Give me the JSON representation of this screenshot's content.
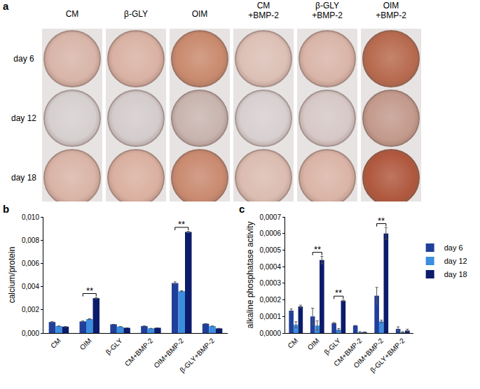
{
  "panel_a": {
    "label": "a",
    "columns": [
      [
        "CM"
      ],
      [
        "β-GLY"
      ],
      [
        "OIM"
      ],
      [
        "CM",
        "+BMP-2"
      ],
      [
        "β-GLY",
        "+BMP-2"
      ],
      [
        "OIM",
        "+BMP-2"
      ]
    ],
    "rows": [
      "day 6",
      "day 12",
      "day 18"
    ],
    "colors": [
      [
        "#d8b5a8",
        "#d9b2a4",
        "#c98a6e",
        "#dcc0b6",
        "#d9b5a8",
        "#b76a4e"
      ],
      [
        "#d6cfd0",
        "#d4cccc",
        "#c8b4ae",
        "#d8d0d0",
        "#d6c8c6",
        "#c39a8c"
      ],
      [
        "#d9b4a6",
        "#dab0a0",
        "#c98a70",
        "#dbbcb0",
        "#dab4a6",
        "#b0583e"
      ]
    ]
  },
  "chart_data": [
    {
      "panel": "b",
      "type": "bar",
      "y_title": "calcium/protein",
      "categories": [
        "CM",
        "OIM",
        "β-GLY",
        "CM+BMP-2",
        "OIM+BMP-2",
        "β-GLY+BMP-2"
      ],
      "series": [
        {
          "name": "day 6",
          "color": "#203f9a",
          "values": [
            0.00095,
            0.001,
            0.00075,
            0.0006,
            0.0043,
            0.0008
          ],
          "errors": [
            3e-05,
            4e-05,
            0,
            0,
            0.0001,
            0
          ]
        },
        {
          "name": "day 12",
          "color": "#3b8ee0",
          "values": [
            0.0006,
            0.0012,
            0.00055,
            0.0004,
            0.0036,
            0.0006
          ],
          "errors": [
            0,
            3e-05,
            0,
            0,
            5e-05,
            0
          ]
        },
        {
          "name": "day 18",
          "color": "#0b1c6b",
          "values": [
            0.00055,
            0.003,
            0.00045,
            0.00045,
            0.0087,
            0.0004
          ],
          "errors": [
            0,
            5e-05,
            0,
            0,
            5e-05,
            0
          ]
        }
      ],
      "ylim": [
        0,
        0.01
      ],
      "yticks": [
        {
          "value": 0,
          "label": "0,000"
        },
        {
          "value": 0.002,
          "label": "0,002"
        },
        {
          "value": 0.004,
          "label": "0,004"
        },
        {
          "value": 0.006,
          "label": "0,006"
        },
        {
          "value": 0.008,
          "label": "0,008"
        },
        {
          "value": 0.01,
          "label": "0,010"
        }
      ],
      "grid": false,
      "annotations": [
        {
          "text": "**",
          "category": "OIM",
          "from": "day 6",
          "to": "day 18"
        },
        {
          "text": "**",
          "category": "OIM+BMP-2",
          "from": "day 6",
          "to": "day 18"
        }
      ]
    },
    {
      "panel": "c",
      "type": "bar",
      "y_title": "alkaline phosphatase activity",
      "categories": [
        "CM",
        "OIM",
        "β-GLY",
        "CM+BMP-2",
        "OIM+BMP-2",
        "β-GLY+BMP-2"
      ],
      "series": [
        {
          "name": "day 6",
          "color": "#203f9a",
          "values": [
            0.000135,
            0.0001,
            6e-05,
            4.5e-05,
            0.000225,
            2.5e-05
          ],
          "errors": [
            1e-05,
            5e-05,
            3e-06,
            0,
            5e-05,
            1.2e-05
          ]
        },
        {
          "name": "day 12",
          "color": "#3b8ee0",
          "values": [
            5e-05,
            4.5e-05,
            2e-05,
            5e-06,
            7e-05,
            5e-06
          ],
          "errors": [
            1.8e-05,
            2.8e-05,
            7e-06,
            3e-06,
            8e-06,
            3e-06
          ]
        },
        {
          "name": "day 18",
          "color": "#0b1c6b",
          "values": [
            0.00016,
            0.00044,
            0.000195,
            5e-06,
            0.0006,
            1.5e-05
          ],
          "errors": [
            8e-06,
            2.2e-05,
            3e-06,
            2e-06,
            3.5e-05,
            8e-06
          ]
        }
      ],
      "ylim": [
        0,
        0.0007
      ],
      "yticks": [
        {
          "value": 0,
          "label": "0,0000"
        },
        {
          "value": 0.0001,
          "label": "0,0001"
        },
        {
          "value": 0.0002,
          "label": "0,0002"
        },
        {
          "value": 0.0003,
          "label": "0,0003"
        },
        {
          "value": 0.0004,
          "label": "0,0004"
        },
        {
          "value": 0.0005,
          "label": "0,0005"
        },
        {
          "value": 0.0006,
          "label": "0,0006"
        },
        {
          "value": 0.0007,
          "label": "0,0007"
        }
      ],
      "grid": false,
      "legend": "right",
      "annotations": [
        {
          "text": "**",
          "category": "OIM",
          "from": "day 6",
          "to": "day 18"
        },
        {
          "text": "**",
          "category": "β-GLY",
          "from": "day 6",
          "to": "day 18"
        },
        {
          "text": "**",
          "category": "OIM+BMP-2",
          "from": "day 6",
          "to": "day 18"
        }
      ]
    }
  ]
}
